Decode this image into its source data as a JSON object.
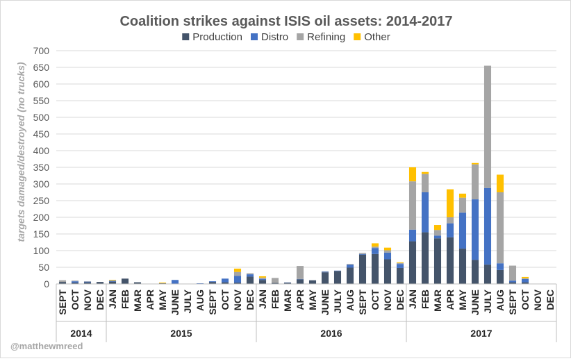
{
  "chart_data": {
    "type": "bar",
    "stacked": true,
    "title": "Coalition strikes against ISIS oil assets: 2014-2017",
    "ylabel": "targets damaged/destroyed (no trucks)",
    "ylim": [
      0,
      700
    ],
    "yticks": [
      0,
      50,
      100,
      150,
      200,
      250,
      300,
      350,
      400,
      450,
      500,
      550,
      600,
      650,
      700
    ],
    "grid": true,
    "legend_position": "top",
    "credit": "@matthewmreed",
    "categories": [
      "SEPT",
      "OCT",
      "NOV",
      "DEC",
      "JAN",
      "FEB",
      "MAR",
      "APR",
      "MAY",
      "JUNE",
      "JULY",
      "AUG",
      "SEPT",
      "OCT",
      "NOV",
      "DEC",
      "JAN",
      "FEB",
      "MAR",
      "APR",
      "MAY",
      "JUNE",
      "JULY",
      "AUG",
      "SEPT",
      "OCT",
      "NOV",
      "DEC",
      "JAN",
      "FEB",
      "MAR",
      "APR",
      "MAY",
      "JUNE",
      "JULY",
      "AUG",
      "SEPT",
      "OCT",
      "NOV",
      "DEC"
    ],
    "groups": [
      {
        "label": "2014",
        "count": 4
      },
      {
        "label": "2015",
        "count": 12
      },
      {
        "label": "2016",
        "count": 12
      },
      {
        "label": "2017",
        "count": 12
      }
    ],
    "series": [
      {
        "name": "Production",
        "color": "#44546a",
        "values": [
          6,
          4,
          5,
          6,
          7,
          16,
          5,
          1,
          2,
          1,
          0,
          1,
          6,
          5,
          4,
          22,
          12,
          3,
          3,
          14,
          11,
          35,
          39,
          49,
          88,
          90,
          74,
          48,
          128,
          155,
          137,
          140,
          106,
          72,
          58,
          42,
          5,
          5,
          0,
          0
        ]
      },
      {
        "name": "Distro",
        "color": "#4472c4",
        "values": [
          0,
          4,
          2,
          0,
          3,
          0,
          0,
          0,
          0,
          11,
          0,
          1,
          2,
          11,
          20,
          7,
          3,
          0,
          1,
          1,
          0,
          2,
          1,
          9,
          2,
          18,
          20,
          12,
          35,
          120,
          8,
          42,
          108,
          182,
          230,
          20,
          5,
          10,
          0,
          0
        ]
      },
      {
        "name": "Refining",
        "color": "#a5a5a5",
        "values": [
          5,
          2,
          1,
          0,
          0,
          0,
          0,
          0,
          0,
          0,
          0,
          0,
          0,
          0,
          12,
          3,
          4,
          15,
          1,
          39,
          0,
          1,
          0,
          2,
          3,
          4,
          7,
          3,
          145,
          55,
          17,
          18,
          45,
          105,
          367,
          213,
          45,
          2,
          0,
          0
        ]
      },
      {
        "name": "Other",
        "color": "#ffc000",
        "values": [
          0,
          0,
          0,
          0,
          2,
          0,
          0,
          0,
          2,
          0,
          0,
          0,
          0,
          0,
          10,
          0,
          4,
          0,
          0,
          0,
          0,
          0,
          0,
          0,
          0,
          10,
          8,
          2,
          42,
          6,
          15,
          84,
          12,
          4,
          0,
          53,
          0,
          4,
          0,
          0
        ]
      }
    ]
  }
}
